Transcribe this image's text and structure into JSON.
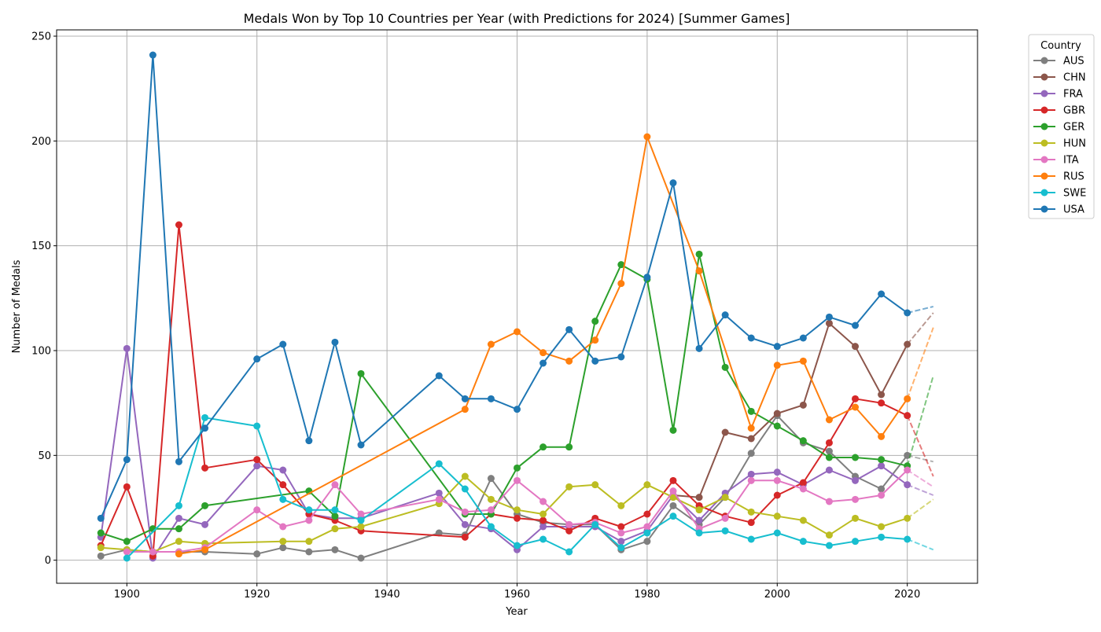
{
  "chart_data": {
    "type": "line",
    "title": "Medals Won by Top 10 Countries per Year (with Predictions for 2024) [Summer Games]",
    "xlabel": "Year",
    "ylabel": "Number of Medals",
    "xlim": [
      1889.2,
      2030.8
    ],
    "ylim": [
      -11,
      253
    ],
    "xticks": [
      1900,
      1920,
      1940,
      1960,
      1980,
      2000,
      2020
    ],
    "yticks": [
      0,
      50,
      100,
      150,
      200,
      250
    ],
    "grid": true,
    "legend": {
      "title": "Country",
      "placement": "outside-top-right"
    },
    "prediction_year": 2024,
    "series": [
      {
        "name": "AUS",
        "color": "#7f7f7f",
        "x": [
          1896,
          1900,
          1904,
          1908,
          1912,
          1920,
          1924,
          1928,
          1932,
          1936,
          1948,
          1952,
          1956,
          1960,
          1964,
          1968,
          1972,
          1976,
          1980,
          1984,
          1988,
          1992,
          1996,
          2000,
          2004,
          2008,
          2012,
          2016,
          2020
        ],
        "y": [
          2,
          5,
          4,
          4,
          4,
          3,
          6,
          4,
          5,
          1,
          13,
          12,
          39,
          22,
          18,
          17,
          17,
          5,
          9,
          26,
          17,
          30,
          51,
          69,
          56,
          52,
          40,
          34,
          50
        ],
        "prediction": 47
      },
      {
        "name": "CHN",
        "color": "#8c564b",
        "x": [
          1984,
          1988,
          1992,
          1996,
          2000,
          2004,
          2008,
          2012,
          2016,
          2020
        ],
        "y": [
          31,
          30,
          61,
          58,
          70,
          74,
          113,
          102,
          79,
          103
        ],
        "prediction": 118
      },
      {
        "name": "FRA",
        "color": "#9467bd",
        "x": [
          1896,
          1900,
          1904,
          1908,
          1912,
          1920,
          1924,
          1928,
          1932,
          1936,
          1948,
          1952,
          1956,
          1960,
          1964,
          1968,
          1972,
          1976,
          1980,
          1984,
          1988,
          1992,
          1996,
          2000,
          2004,
          2008,
          2012,
          2016,
          2020
        ],
        "y": [
          11,
          101,
          1,
          20,
          17,
          45,
          43,
          22,
          20,
          20,
          32,
          17,
          15,
          5,
          16,
          16,
          16,
          9,
          14,
          31,
          19,
          32,
          41,
          42,
          36,
          43,
          38,
          45,
          36
        ],
        "prediction": 31
      },
      {
        "name": "GBR",
        "color": "#d62728",
        "x": [
          1896,
          1900,
          1904,
          1908,
          1912,
          1920,
          1924,
          1928,
          1932,
          1936,
          1952,
          1956,
          1960,
          1964,
          1968,
          1972,
          1976,
          1980,
          1984,
          1988,
          1992,
          1996,
          2000,
          2004,
          2008,
          2012,
          2016,
          2020
        ],
        "y": [
          7,
          35,
          2,
          160,
          44,
          48,
          36,
          22,
          19,
          14,
          11,
          22,
          20,
          19,
          14,
          20,
          16,
          22,
          38,
          26,
          21,
          18,
          31,
          37,
          56,
          77,
          75,
          69
        ],
        "prediction": 40
      },
      {
        "name": "GER",
        "color": "#2ca02c",
        "x": [
          1896,
          1900,
          1904,
          1908,
          1912,
          1928,
          1932,
          1936,
          1952,
          1956,
          1960,
          1964,
          1968,
          1972,
          1976,
          1980,
          1984,
          1988,
          1992,
          1996,
          2000,
          2004,
          2008,
          2012,
          2016,
          2020
        ],
        "y": [
          13,
          9,
          15,
          15,
          26,
          33,
          21,
          89,
          22,
          22,
          44,
          54,
          54,
          114,
          141,
          134,
          62,
          146,
          92,
          71,
          64,
          57,
          49,
          49,
          48,
          45
        ],
        "prediction": 88
      },
      {
        "name": "HUN",
        "color": "#bcbd22",
        "x": [
          1896,
          1900,
          1904,
          1908,
          1912,
          1924,
          1928,
          1932,
          1936,
          1948,
          1952,
          1956,
          1960,
          1964,
          1968,
          1972,
          1976,
          1980,
          1984,
          1988,
          1992,
          1996,
          2000,
          2004,
          2008,
          2012,
          2016,
          2020
        ],
        "y": [
          6,
          5,
          4,
          9,
          8,
          9,
          9,
          15,
          16,
          27,
          40,
          29,
          24,
          22,
          35,
          36,
          26,
          36,
          30,
          24,
          30,
          23,
          21,
          19,
          12,
          20,
          16,
          20
        ],
        "prediction": 29
      },
      {
        "name": "ITA",
        "color": "#e377c2",
        "x": [
          1900,
          1904,
          1908,
          1912,
          1920,
          1924,
          1928,
          1932,
          1936,
          1948,
          1952,
          1956,
          1960,
          1964,
          1968,
          1972,
          1976,
          1980,
          1984,
          1988,
          1992,
          1996,
          2000,
          2004,
          2008,
          2012,
          2016,
          2020
        ],
        "y": [
          4,
          4,
          4,
          6,
          24,
          16,
          19,
          36,
          22,
          29,
          23,
          24,
          38,
          28,
          17,
          18,
          13,
          16,
          33,
          15,
          20,
          38,
          38,
          34,
          28,
          29,
          31,
          43
        ],
        "prediction": 35
      },
      {
        "name": "RUS",
        "color": "#ff7f0e",
        "x": [
          1908,
          1912,
          1952,
          1956,
          1960,
          1964,
          1968,
          1972,
          1976,
          1980,
          1988,
          1996,
          2000,
          2004,
          2008,
          2012,
          2016,
          2020
        ],
        "y": [
          3,
          5,
          72,
          103,
          109,
          99,
          95,
          105,
          132,
          202,
          138,
          63,
          93,
          95,
          67,
          73,
          59,
          77
        ],
        "prediction": 111
      },
      {
        "name": "SWE",
        "color": "#17becf",
        "x": [
          1900,
          1908,
          1912,
          1920,
          1924,
          1928,
          1932,
          1936,
          1948,
          1952,
          1956,
          1960,
          1964,
          1968,
          1972,
          1976,
          1980,
          1984,
          1988,
          1992,
          1996,
          2000,
          2004,
          2008,
          2012,
          2016,
          2020
        ],
        "y": [
          1,
          26,
          68,
          64,
          29,
          24,
          24,
          19,
          46,
          34,
          16,
          7,
          10,
          4,
          17,
          6,
          13,
          21,
          13,
          14,
          10,
          13,
          9,
          7,
          9,
          11,
          10
        ],
        "prediction": 5
      },
      {
        "name": "USA",
        "color": "#1f77b4",
        "x": [
          1896,
          1900,
          1904,
          1908,
          1912,
          1920,
          1924,
          1928,
          1932,
          1936,
          1948,
          1952,
          1956,
          1960,
          1964,
          1968,
          1972,
          1976,
          1980,
          1984,
          1988,
          1992,
          1996,
          2000,
          2004,
          2008,
          2012,
          2016,
          2020
        ],
        "y": [
          20,
          48,
          241,
          47,
          63,
          96,
          103,
          57,
          104,
          55,
          88,
          77,
          77,
          72,
          94,
          110,
          95,
          97,
          135,
          180,
          101,
          117,
          106,
          102,
          106,
          116,
          112,
          127,
          118
        ],
        "prediction": 121
      }
    ]
  }
}
